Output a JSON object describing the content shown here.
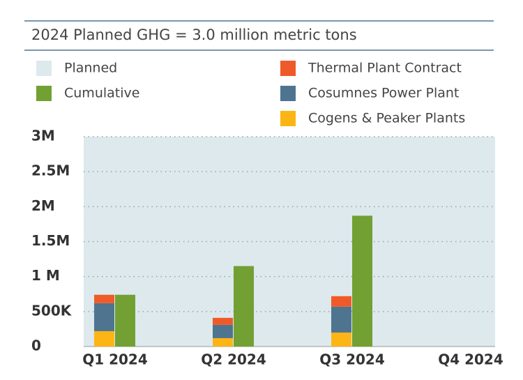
{
  "chart_data": {
    "type": "bar",
    "title": "2024 Planned GHG = 3.0 million metric tons",
    "categories": [
      "Q1 2024",
      "Q2 2024",
      "Q3 2024",
      "Q4 2024"
    ],
    "series": [
      {
        "name": "Planned",
        "color": "#dde9ec",
        "values": [
          3000000,
          3000000,
          3000000,
          3000000
        ]
      },
      {
        "name": "Cumulative",
        "color": "#72a033",
        "values": [
          740000,
          1150000,
          1870000,
          null
        ]
      },
      {
        "name": "Thermal Plant Contract",
        "color": "#f05a28",
        "values": [
          120000,
          100000,
          150000,
          null
        ]
      },
      {
        "name": "Cosumnes Power Plant",
        "color": "#4e7490",
        "values": [
          400000,
          190000,
          370000,
          null
        ]
      },
      {
        "name": "Cogens & Peaker Plants",
        "color": "#fdb515",
        "values": [
          220000,
          120000,
          200000,
          null
        ]
      }
    ],
    "ylim": [
      0,
      3000000
    ],
    "yticks": [
      0,
      {
        "value": 500000,
        "label": "500K"
      },
      {
        "value": 1000000,
        "label": "1 M"
      },
      {
        "value": 1500000,
        "label": "1.5M"
      },
      {
        "value": 2000000,
        "label": "2M"
      },
      {
        "value": 2500000,
        "label": "2.5M"
      },
      {
        "value": 3000000,
        "label": "3M"
      }
    ],
    "grid": true
  }
}
